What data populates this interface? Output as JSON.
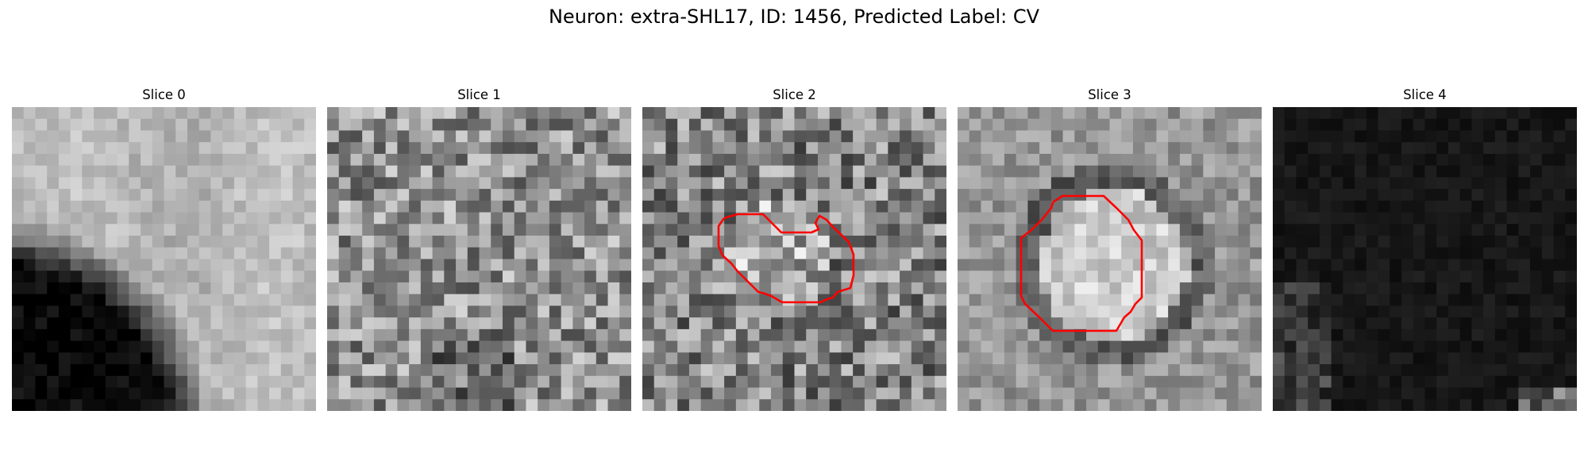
{
  "figure": {
    "title": "Neuron: extra-SHL17, ID: 1456, Predicted Label: CV"
  },
  "panels": [
    {
      "title": "Slice 0",
      "appearance": "bright-upper-dark-lower-left",
      "has_contour": false
    },
    {
      "title": "Slice 1",
      "appearance": "uniform-gray-noise",
      "has_contour": false
    },
    {
      "title": "Slice 2",
      "appearance": "gray-noise-with-blob",
      "has_contour": true
    },
    {
      "title": "Slice 3",
      "appearance": "gray-with-bright-disc-and-dark-ring",
      "has_contour": true
    },
    {
      "title": "Slice 4",
      "appearance": "mostly-black",
      "has_contour": false
    }
  ],
  "style": {
    "contour_color": "#ff0000",
    "colormap": "gray"
  }
}
